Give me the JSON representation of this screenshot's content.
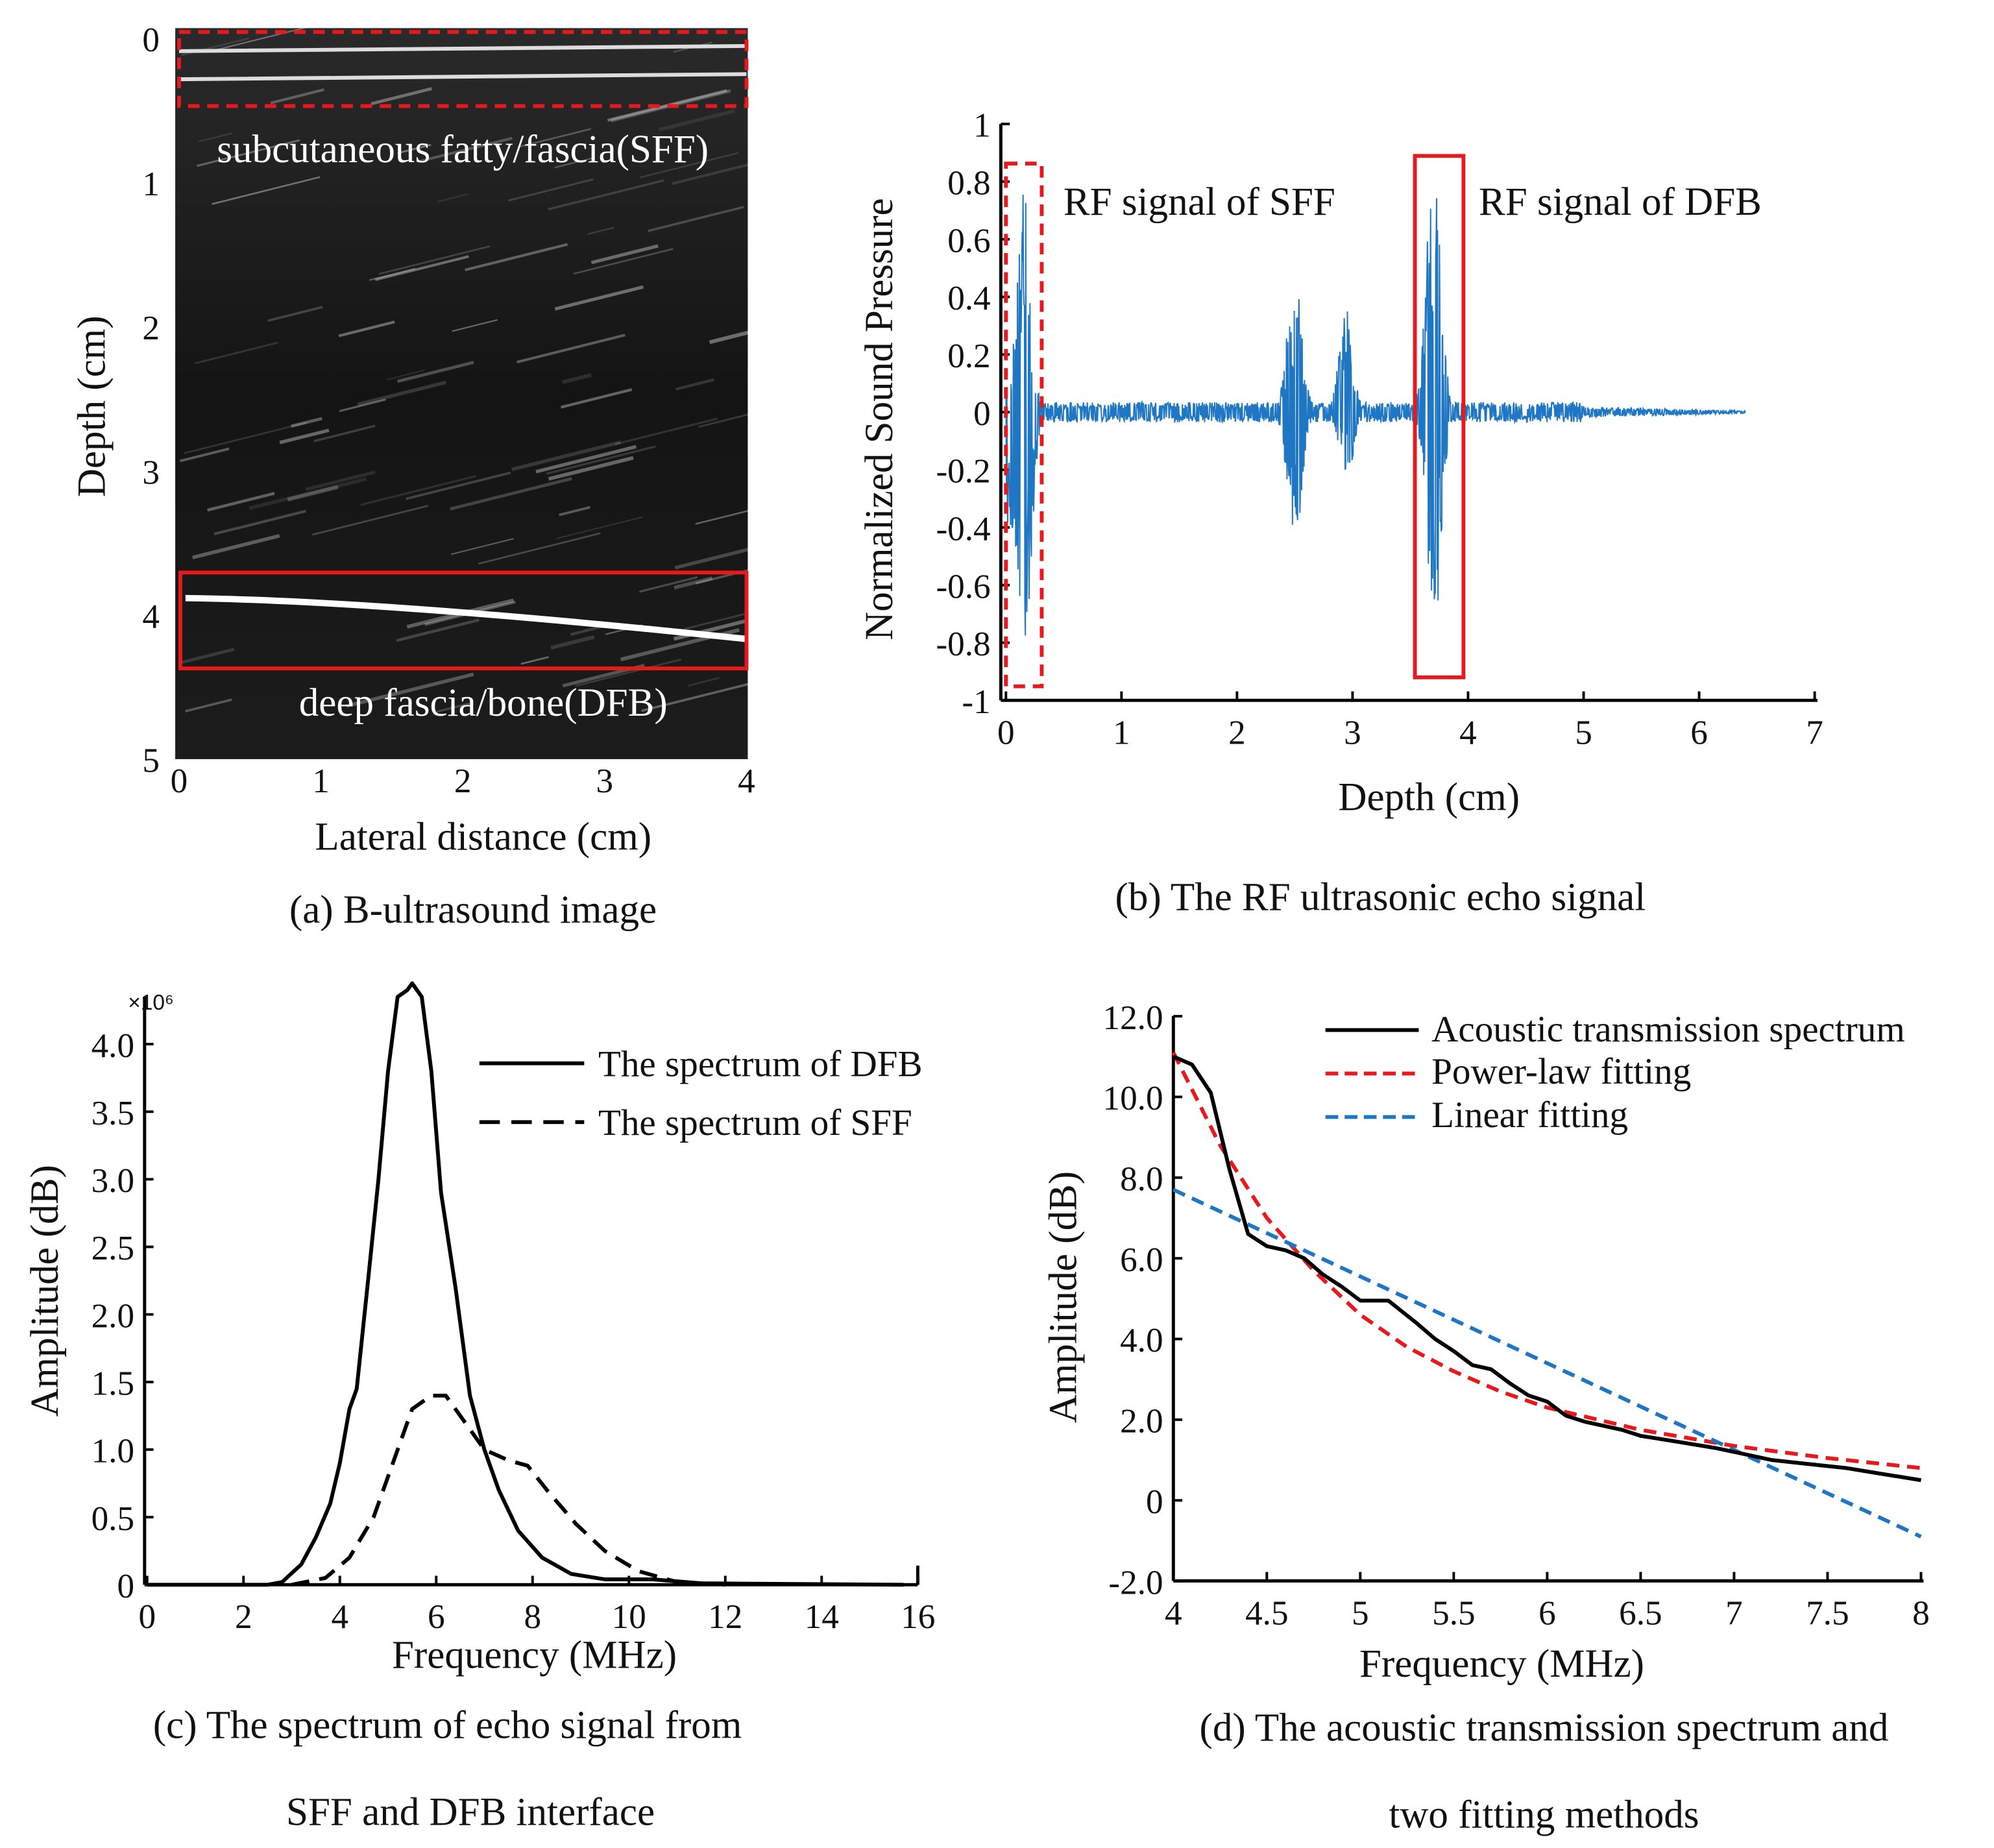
{
  "chart_data": [
    {
      "id": "a",
      "type": "image",
      "caption": "(a) B-ultrasound image",
      "xlabel": "Lateral distance (cm)",
      "ylabel": "Depth (cm)",
      "xticks": [
        "0",
        "1",
        "2",
        "3",
        "4"
      ],
      "yticks": [
        "0",
        "1",
        "2",
        "3",
        "4",
        "5"
      ],
      "xlim": [
        0,
        4
      ],
      "ylim": [
        0,
        5
      ],
      "annotations": [
        {
          "label": "subcutaneous fatty/fascia(SFF)",
          "style": "dashed",
          "depth_range": [
            0,
            0.5
          ],
          "color": "#e8191c"
        },
        {
          "label": "deep fascia/bone(DFB)",
          "style": "solid",
          "depth_range": [
            3.7,
            4.35
          ],
          "color": "#e8191c"
        }
      ]
    },
    {
      "id": "b",
      "type": "line",
      "caption": "(b) The RF ultrasonic echo signal",
      "xlabel": "Depth (cm)",
      "ylabel": "Normalized Sound Pressure",
      "xticks": [
        "0",
        "1",
        "2",
        "3",
        "4",
        "5",
        "6",
        "7"
      ],
      "yticks": [
        "1",
        "0.8",
        "0.6",
        "0.4",
        "0.2",
        "0",
        "-0.2",
        "-0.4",
        "-0.6",
        "-0.8",
        "-1"
      ],
      "xlim": [
        0,
        7
      ],
      "ylim": [
        -1,
        1
      ],
      "color": "#1f77c4",
      "bursts": [
        {
          "depth": 0.05,
          "max": 0.12,
          "min": -0.45
        },
        {
          "depth": 0.15,
          "max": 0.85,
          "min": -0.95
        },
        {
          "depth": 2.5,
          "max": 0.5,
          "min": -0.45
        },
        {
          "depth": 2.95,
          "max": 0.38,
          "min": -0.22
        },
        {
          "depth": 3.7,
          "max": 0.83,
          "min": -0.8
        }
      ],
      "signal_end": 6.4,
      "annotations": [
        {
          "label": "RF signal of SFF",
          "style": "dashed",
          "depth_range": [
            0,
            0.3
          ],
          "color": "#e8191c"
        },
        {
          "label": "RF signal of DFB",
          "style": "solid",
          "depth_range": [
            3.55,
            3.95
          ],
          "color": "#e8191c"
        }
      ]
    },
    {
      "id": "c",
      "type": "line",
      "caption_lines": [
        "(c) The spectrum of echo signal from",
        "SFF and DFB interface"
      ],
      "xlabel": "Frequency (MHz)",
      "ylabel": "Amplitude (dB)",
      "y_multiplier": "×10⁶",
      "xticks": [
        "0",
        "2",
        "4",
        "6",
        "8",
        "10",
        "12",
        "14",
        "16"
      ],
      "yticks": [
        "0",
        "0.5",
        "1.0",
        "1.5",
        "2.0",
        "2.5",
        "3.0",
        "3.5",
        "4.0"
      ],
      "xlim": [
        0,
        16
      ],
      "ylim": [
        0,
        4.4
      ],
      "series": [
        {
          "name": "The spectrum of DFB",
          "style": "solid",
          "color": "#000000",
          "x": [
            0,
            2.5,
            2.8,
            3.2,
            3.5,
            3.8,
            4.0,
            4.2,
            4.35,
            4.6,
            4.8,
            5.0,
            5.2,
            5.4,
            5.5,
            5.7,
            5.9,
            6.1,
            6.4,
            6.7,
            7.0,
            7.3,
            7.7,
            8.2,
            8.8,
            9.5,
            10.5,
            11.5,
            15.7
          ],
          "y": [
            0,
            0,
            0.02,
            0.15,
            0.35,
            0.6,
            0.9,
            1.3,
            1.45,
            2.3,
            3.0,
            3.8,
            4.35,
            4.4,
            4.45,
            4.35,
            3.8,
            2.9,
            2.2,
            1.4,
            1.0,
            0.7,
            0.4,
            0.2,
            0.08,
            0.04,
            0.04,
            0.01,
            0
          ]
        },
        {
          "name": "The spectrum of SFF",
          "style": "dashed",
          "color": "#000000",
          "x": [
            3,
            3.7,
            4.2,
            4.7,
            5.1,
            5.5,
            5.9,
            6.2,
            6.6,
            7.0,
            7.5,
            7.9,
            8.3,
            8.9,
            9.5,
            10.2,
            11,
            12
          ],
          "y": [
            0,
            0.05,
            0.2,
            0.5,
            0.9,
            1.3,
            1.4,
            1.4,
            1.2,
            1.0,
            0.92,
            0.88,
            0.7,
            0.45,
            0.25,
            0.1,
            0.02,
            0
          ]
        }
      ],
      "legend": "top-right"
    },
    {
      "id": "d",
      "type": "line",
      "caption_lines": [
        "(d) The acoustic transmission spectrum and",
        "two fitting methods"
      ],
      "xlabel": "Frequency (MHz)",
      "ylabel": "Amplitude (dB)",
      "xticks": [
        "4",
        "4.5",
        "5",
        "5.5",
        "6",
        "6.5",
        "7",
        "7.5",
        "8"
      ],
      "yticks": [
        "12.0",
        "10.0",
        "8.0",
        "6.0",
        "4.0",
        "2.0",
        "0",
        "-2.0"
      ],
      "xlim": [
        4,
        8
      ],
      "ylim": [
        -2,
        12
      ],
      "series": [
        {
          "name": "Acoustic transmission spectrum",
          "style": "solid",
          "color": "#000000",
          "x": [
            4,
            4.1,
            4.2,
            4.3,
            4.4,
            4.5,
            4.6,
            4.7,
            4.8,
            4.9,
            5.0,
            5.15,
            5.3,
            5.4,
            5.5,
            5.6,
            5.7,
            5.8,
            5.9,
            6.0,
            6.1,
            6.2,
            6.4,
            6.5,
            6.7,
            6.9,
            7.0,
            7.2,
            7.4,
            7.6,
            7.8,
            8.0
          ],
          "y": [
            11,
            10.8,
            10.1,
            8.2,
            6.6,
            6.3,
            6.2,
            6.0,
            5.6,
            5.3,
            4.95,
            4.95,
            4.4,
            4.0,
            3.7,
            3.35,
            3.25,
            2.9,
            2.6,
            2.45,
            2.1,
            1.95,
            1.75,
            1.6,
            1.45,
            1.3,
            1.2,
            1.0,
            0.9,
            0.8,
            0.65,
            0.5
          ]
        },
        {
          "name": "Power-law fitting",
          "style": "dashed",
          "color": "#e8191c",
          "x": [
            4,
            4.25,
            4.5,
            4.75,
            5,
            5.25,
            5.5,
            5.75,
            6,
            6.5,
            7,
            7.5,
            8
          ],
          "y": [
            11.1,
            8.8,
            7.0,
            5.7,
            4.6,
            3.8,
            3.2,
            2.7,
            2.3,
            1.75,
            1.35,
            1.05,
            0.8
          ]
        },
        {
          "name": "Linear fitting",
          "style": "dashed",
          "color": "#1f77c4",
          "x": [
            4,
            8
          ],
          "y": [
            7.7,
            -0.9
          ]
        }
      ],
      "legend": "top-right"
    }
  ]
}
